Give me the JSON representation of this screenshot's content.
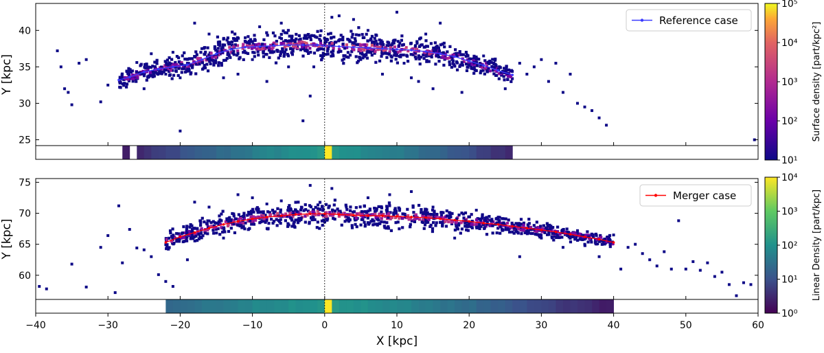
{
  "chart_data": {
    "type": "scatter",
    "shared_x_axis": {
      "label": "X [kpc]",
      "range": [
        -40,
        60
      ],
      "ticks": [
        -40,
        -30,
        -20,
        -10,
        0,
        10,
        20,
        30,
        40,
        50,
        60
      ]
    },
    "reference_line_x": 0,
    "panels": [
      {
        "name": "reference",
        "ylabel": "Y [kpc]",
        "ylim": [
          24.2,
          43.7
        ],
        "yticks": [
          25,
          30,
          35,
          40
        ],
        "legend": {
          "label": "Reference case",
          "placement": "top-right",
          "color": "#3a3aff"
        },
        "track": {
          "x": [
            -28.5,
            -27,
            -25,
            -23,
            -21,
            -19,
            -17,
            -15,
            -13,
            -11,
            -9,
            -7,
            -5,
            -3,
            -1,
            0,
            2,
            4,
            6,
            8,
            10,
            12,
            14,
            16,
            18,
            20,
            22,
            24,
            26
          ],
          "y": [
            33.2,
            33.6,
            34.3,
            34.7,
            35.0,
            35.3,
            36.0,
            36.8,
            37.4,
            37.7,
            37.8,
            37.9,
            38.0,
            38.0,
            38.0,
            37.9,
            37.8,
            37.7,
            37.6,
            37.5,
            37.4,
            37.3,
            37.1,
            36.8,
            36.4,
            35.8,
            35.2,
            34.5,
            33.9
          ]
        },
        "outliers": {
          "x": [
            -37,
            -36.5,
            -36,
            -35.5,
            -35,
            -33,
            -31,
            -30,
            -34,
            -25,
            -24,
            -22,
            -21,
            -20,
            -19,
            -20,
            -18,
            -16,
            -14,
            -12,
            -10,
            -8,
            -3,
            -1.5,
            -9,
            -6,
            1,
            4,
            6,
            8,
            10,
            11,
            12,
            14,
            16,
            19,
            22,
            25,
            27,
            28,
            29,
            30,
            31,
            32,
            33,
            34,
            35,
            36,
            37,
            38,
            39,
            59.5,
            -17,
            -11,
            2,
            13,
            15,
            -5,
            5,
            -2,
            0.5,
            -14,
            -26
          ],
          "y": [
            37.2,
            35.0,
            32.0,
            31.5,
            29.8,
            36.0,
            30.2,
            32.5,
            35.5,
            32.0,
            36.8,
            34.0,
            37.0,
            26.2,
            35.5,
            33.5,
            41.0,
            39.5,
            33.5,
            34.0,
            36.0,
            33.0,
            27.6,
            35.0,
            40.5,
            41.0,
            41.8,
            41.5,
            40.0,
            34.0,
            42.5,
            35.5,
            33.5,
            39.5,
            41.0,
            31.5,
            36.5,
            32.0,
            35.5,
            34.0,
            35.0,
            36.0,
            33.0,
            35.5,
            31.5,
            34.0,
            30.0,
            29.5,
            29.0,
            28.0,
            27.0,
            25.0,
            37.5,
            39.0,
            42.0,
            33.0,
            32.0,
            35.0,
            36.0,
            31.0,
            39.5,
            38.8,
            35.6
          ]
        },
        "colorbar": {
          "label": "Surface density [part/kpc²]",
          "colormap": "plasma",
          "range": [
            10,
            100000
          ],
          "ticks": [
            "10¹",
            "10²",
            "10³",
            "10⁴",
            "10⁵"
          ]
        },
        "linear_density_strip": {
          "x_start": [
            -28,
            -26
          ],
          "x_end": 26,
          "segment_width": 1,
          "peak_x": 0.5
        }
      },
      {
        "name": "merger",
        "ylabel": "Y [kpc]",
        "ylim": [
          56.1,
          75.6
        ],
        "yticks": [
          60,
          65,
          70,
          75
        ],
        "legend": {
          "label": "Merger case",
          "placement": "top-right",
          "color": "#ff0000"
        },
        "track": {
          "x": [
            -22,
            -20,
            -18,
            -16,
            -14,
            -12,
            -10,
            -8,
            -6,
            -4,
            -2,
            0,
            2,
            4,
            6,
            8,
            10,
            12,
            14,
            16,
            18,
            20,
            22,
            24,
            26,
            28,
            30,
            32,
            34,
            36,
            38,
            40
          ],
          "y": [
            65.3,
            66.2,
            66.9,
            67.6,
            68.2,
            68.7,
            69.1,
            69.4,
            69.6,
            69.8,
            69.9,
            69.9,
            69.8,
            69.7,
            69.6,
            69.6,
            69.5,
            69.4,
            69.3,
            69.1,
            68.9,
            68.7,
            68.4,
            68.2,
            67.9,
            67.6,
            67.3,
            67.0,
            66.6,
            66.2,
            65.8,
            65.3
          ]
        },
        "outliers": {
          "x": [
            -39.5,
            -38.5,
            -35,
            -33,
            -31,
            -30,
            -29,
            -28,
            -28.5,
            -27,
            -25,
            -24,
            -23,
            -22,
            -21,
            -19,
            -18,
            -16,
            -14,
            -12,
            -10,
            -8,
            -6,
            -4,
            -2,
            1,
            3,
            6,
            9,
            12,
            15,
            18,
            21,
            24,
            27,
            30,
            33,
            36,
            38,
            40,
            41,
            42,
            43,
            44,
            45,
            46,
            47,
            48,
            49,
            50,
            51,
            52,
            53,
            54,
            55,
            56,
            57,
            58,
            59,
            -26,
            31,
            35
          ],
          "y": [
            58.2,
            57.8,
            61.8,
            58.1,
            64.5,
            66.4,
            57.2,
            62.0,
            71.2,
            67.4,
            64.1,
            63.0,
            60.1,
            59.0,
            58.2,
            62.5,
            71.8,
            71.0,
            66.0,
            73.0,
            72.5,
            71.5,
            72.0,
            70.5,
            74.5,
            74.0,
            71.0,
            72.5,
            73.0,
            73.5,
            71.0,
            66.0,
            70.5,
            69.0,
            63.0,
            66.0,
            64.5,
            65.0,
            63.0,
            66.5,
            61.0,
            64.5,
            65.0,
            63.5,
            62.5,
            61.5,
            63.8,
            61.0,
            68.8,
            61.0,
            62.2,
            60.8,
            62.0,
            59.8,
            60.5,
            58.5,
            56.7,
            58.8,
            58.5,
            64.4,
            68.0,
            67.2
          ]
        },
        "colorbar": {
          "label": "Linear Density [part/kpc]",
          "colormap": "viridis",
          "range": [
            1,
            10000
          ],
          "ticks": [
            "10⁰",
            "10¹",
            "10²",
            "10³",
            "10⁴"
          ]
        },
        "linear_density_strip": {
          "x_start": [
            -22
          ],
          "x_end": 40,
          "segment_width": 1,
          "peak_x": 0.5
        }
      }
    ]
  }
}
